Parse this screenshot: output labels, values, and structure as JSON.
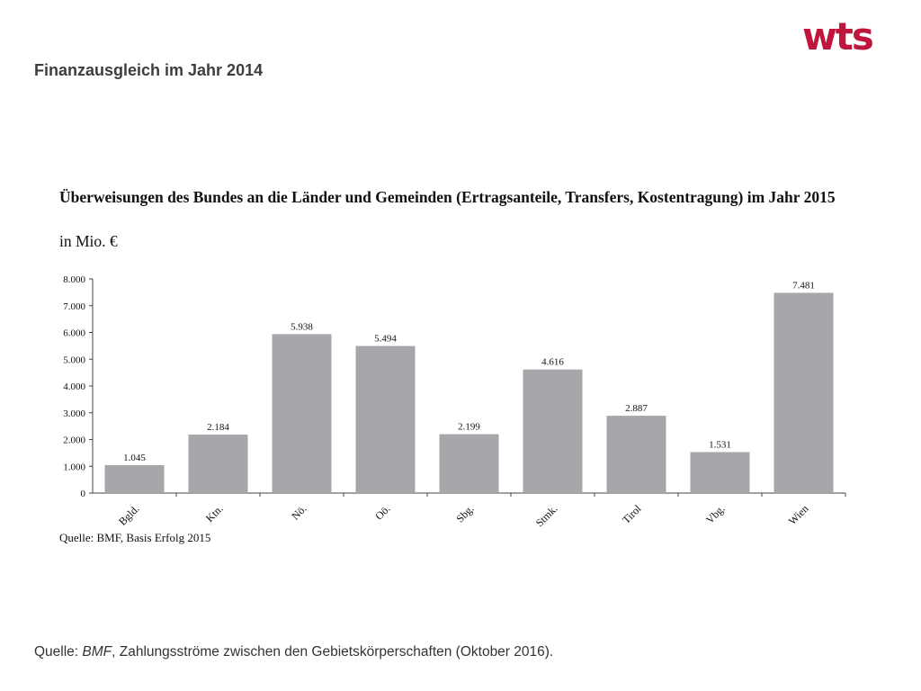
{
  "logo": {
    "text": "wts",
    "color": "#c0163c"
  },
  "slide": {
    "title": "Finanzausgleich im Jahr 2014",
    "source_prefix": "Quelle: ",
    "source_name": "BMF",
    "source_rest": ", Zahlungsströme zwischen den Gebietskörperschaften (Oktober 2016)."
  },
  "chart_data": {
    "type": "bar",
    "title": "Überweisungen des Bundes an die Länder und Gemeinden (Ertragsanteile, Transfers, Kostentragung) im Jahr 2015",
    "unit": "in Mio. €",
    "source": "Quelle: BMF, Basis Erfolg 2015",
    "categories": [
      "Bgld.",
      "Ktn.",
      "Nö.",
      "Oö.",
      "Sbg.",
      "Stmk.",
      "Tirol",
      "Vbg.",
      "Wien"
    ],
    "values": [
      1045,
      2184,
      5938,
      5494,
      2199,
      4616,
      2887,
      1531,
      7481
    ],
    "value_labels": [
      "1.045",
      "2.184",
      "5.938",
      "5.494",
      "2.199",
      "4.616",
      "2.887",
      "1.531",
      "7.481"
    ],
    "yticks": [
      0,
      1000,
      2000,
      3000,
      4000,
      5000,
      6000,
      7000,
      8000
    ],
    "ytick_labels": [
      "0",
      "1.000",
      "2.000",
      "3.000",
      "4.000",
      "5.000",
      "6.000",
      "7.000",
      "8.000"
    ],
    "ylim": [
      0,
      8000
    ],
    "grid": false,
    "bar_color": "#a6a7ab"
  }
}
